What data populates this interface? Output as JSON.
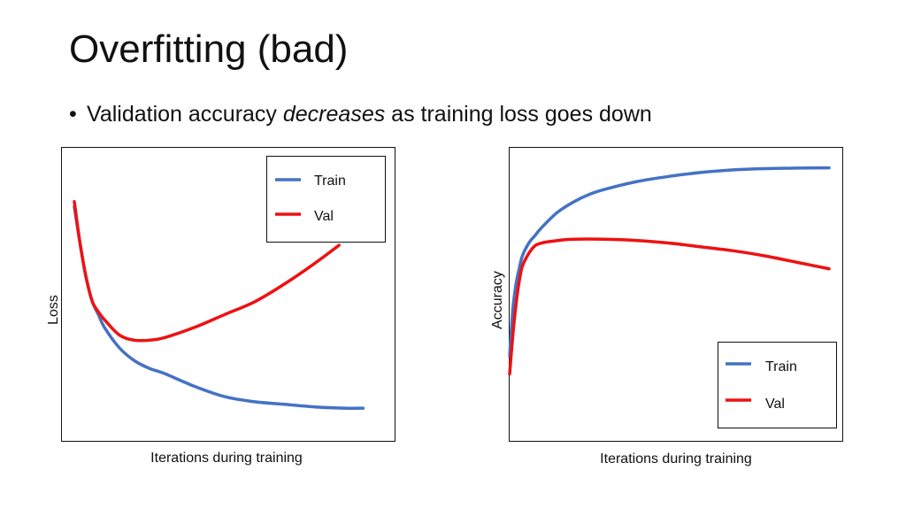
{
  "slide": {
    "title": "Overfitting (bad)",
    "bullet_prefix": "Validation accuracy ",
    "bullet_emphasis": "decreases",
    "bullet_suffix": " as training loss goes down"
  },
  "colors": {
    "train": "#4472c4",
    "val": "#ee1111"
  },
  "chart_data": [
    {
      "type": "line",
      "title": "",
      "xlabel": "Iterations during training",
      "ylabel": "Loss",
      "xlim": [
        0,
        100
      ],
      "ylim": [
        0,
        100
      ],
      "grid": false,
      "legend_position": "top-right",
      "series": [
        {
          "name": "Train",
          "x": [
            0,
            2,
            4,
            6,
            8,
            10,
            15,
            20,
            25,
            30,
            40,
            50,
            60,
            70,
            80,
            90,
            96
          ],
          "y": [
            85,
            70,
            57,
            48,
            43,
            38,
            30,
            25,
            22,
            20,
            15,
            11,
            9,
            8,
            7,
            6.5,
            6.5
          ]
        },
        {
          "name": "Val",
          "x": [
            0,
            2,
            4,
            6,
            8,
            10,
            15,
            20,
            25,
            30,
            40,
            50,
            60,
            70,
            80,
            88
          ],
          "y": [
            87,
            70,
            57,
            48,
            44,
            41,
            35,
            33,
            33,
            34,
            38,
            43,
            48,
            55,
            63,
            70
          ]
        }
      ]
    },
    {
      "type": "line",
      "title": "",
      "xlabel": "Iterations during training",
      "ylabel": "Accuracy",
      "xlim": [
        0,
        100
      ],
      "ylim": [
        0,
        100
      ],
      "grid": false,
      "legend_position": "bottom-right",
      "series": [
        {
          "name": "Train",
          "x": [
            0,
            1,
            2,
            3,
            4,
            6,
            8,
            10,
            15,
            20,
            25,
            30,
            40,
            50,
            60,
            70,
            80,
            90,
            100
          ],
          "y": [
            22,
            40,
            50,
            56,
            61,
            66,
            69,
            72,
            78,
            82,
            85,
            87,
            90,
            92,
            93.5,
            94.5,
            95,
            95.2,
            95.3
          ]
        },
        {
          "name": "Val",
          "x": [
            0,
            1,
            2,
            3,
            4,
            6,
            8,
            10,
            12,
            15,
            20,
            30,
            40,
            50,
            60,
            70,
            80,
            90,
            100
          ],
          "y": [
            15,
            30,
            42,
            51,
            57,
            62,
            65,
            66,
            66.5,
            67,
            67.5,
            67.5,
            67,
            66,
            64.5,
            63,
            61,
            58.5,
            56
          ]
        }
      ]
    }
  ]
}
